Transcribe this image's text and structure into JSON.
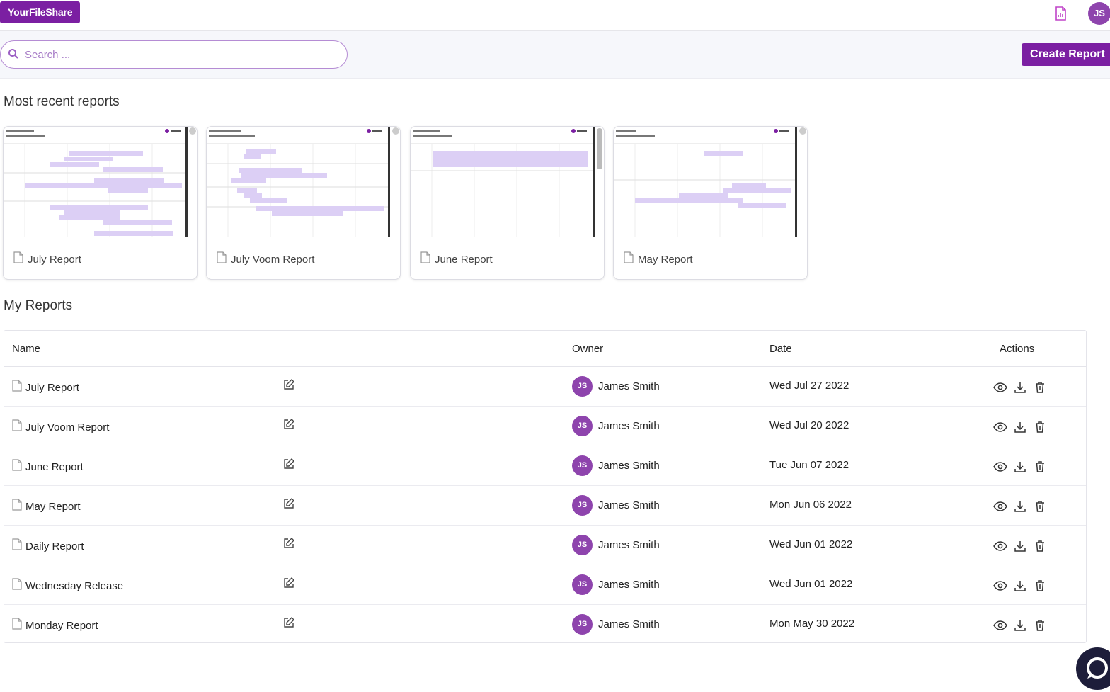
{
  "app": {
    "brand": "YourFileShare",
    "user_initials": "JS"
  },
  "colors": {
    "accent": "#7b1fa2",
    "avatar": "#8e44ad",
    "thumb_bar": "#dccff5"
  },
  "search": {
    "placeholder": "Search ..."
  },
  "header": {
    "create_label": "Create Report"
  },
  "recent": {
    "title": "Most recent reports",
    "cards": [
      {
        "label": "July Report"
      },
      {
        "label": "July Voom Report"
      },
      {
        "label": "June Report"
      },
      {
        "label": "May Report"
      }
    ]
  },
  "my_reports": {
    "title": "My Reports",
    "columns": {
      "name": "Name",
      "owner": "Owner",
      "date": "Date",
      "actions": "Actions"
    },
    "rows": [
      {
        "name": "July Report",
        "owner": "James Smith",
        "owner_initials": "JS",
        "date": "Wed Jul 27 2022"
      },
      {
        "name": "July Voom Report",
        "owner": "James Smith",
        "owner_initials": "JS",
        "date": "Wed Jul 20 2022"
      },
      {
        "name": "June Report",
        "owner": "James Smith",
        "owner_initials": "JS",
        "date": "Tue Jun 07 2022"
      },
      {
        "name": "May Report",
        "owner": "James Smith",
        "owner_initials": "JS",
        "date": "Mon Jun 06 2022"
      },
      {
        "name": "Daily Report",
        "owner": "James Smith",
        "owner_initials": "JS",
        "date": "Wed Jun 01 2022"
      },
      {
        "name": "Wednesday Release",
        "owner": "James Smith",
        "owner_initials": "JS",
        "date": "Wed Jun 01 2022"
      },
      {
        "name": "Monday Report",
        "owner": "James Smith",
        "owner_initials": "JS",
        "date": "Mon May 30 2022"
      }
    ]
  },
  "icons": {
    "report": "report-chart-icon",
    "search": "search-icon",
    "file": "file-icon",
    "edit": "edit-icon",
    "view": "eye-icon",
    "download": "download-icon",
    "delete": "trash-icon",
    "chat": "chat-icon"
  }
}
